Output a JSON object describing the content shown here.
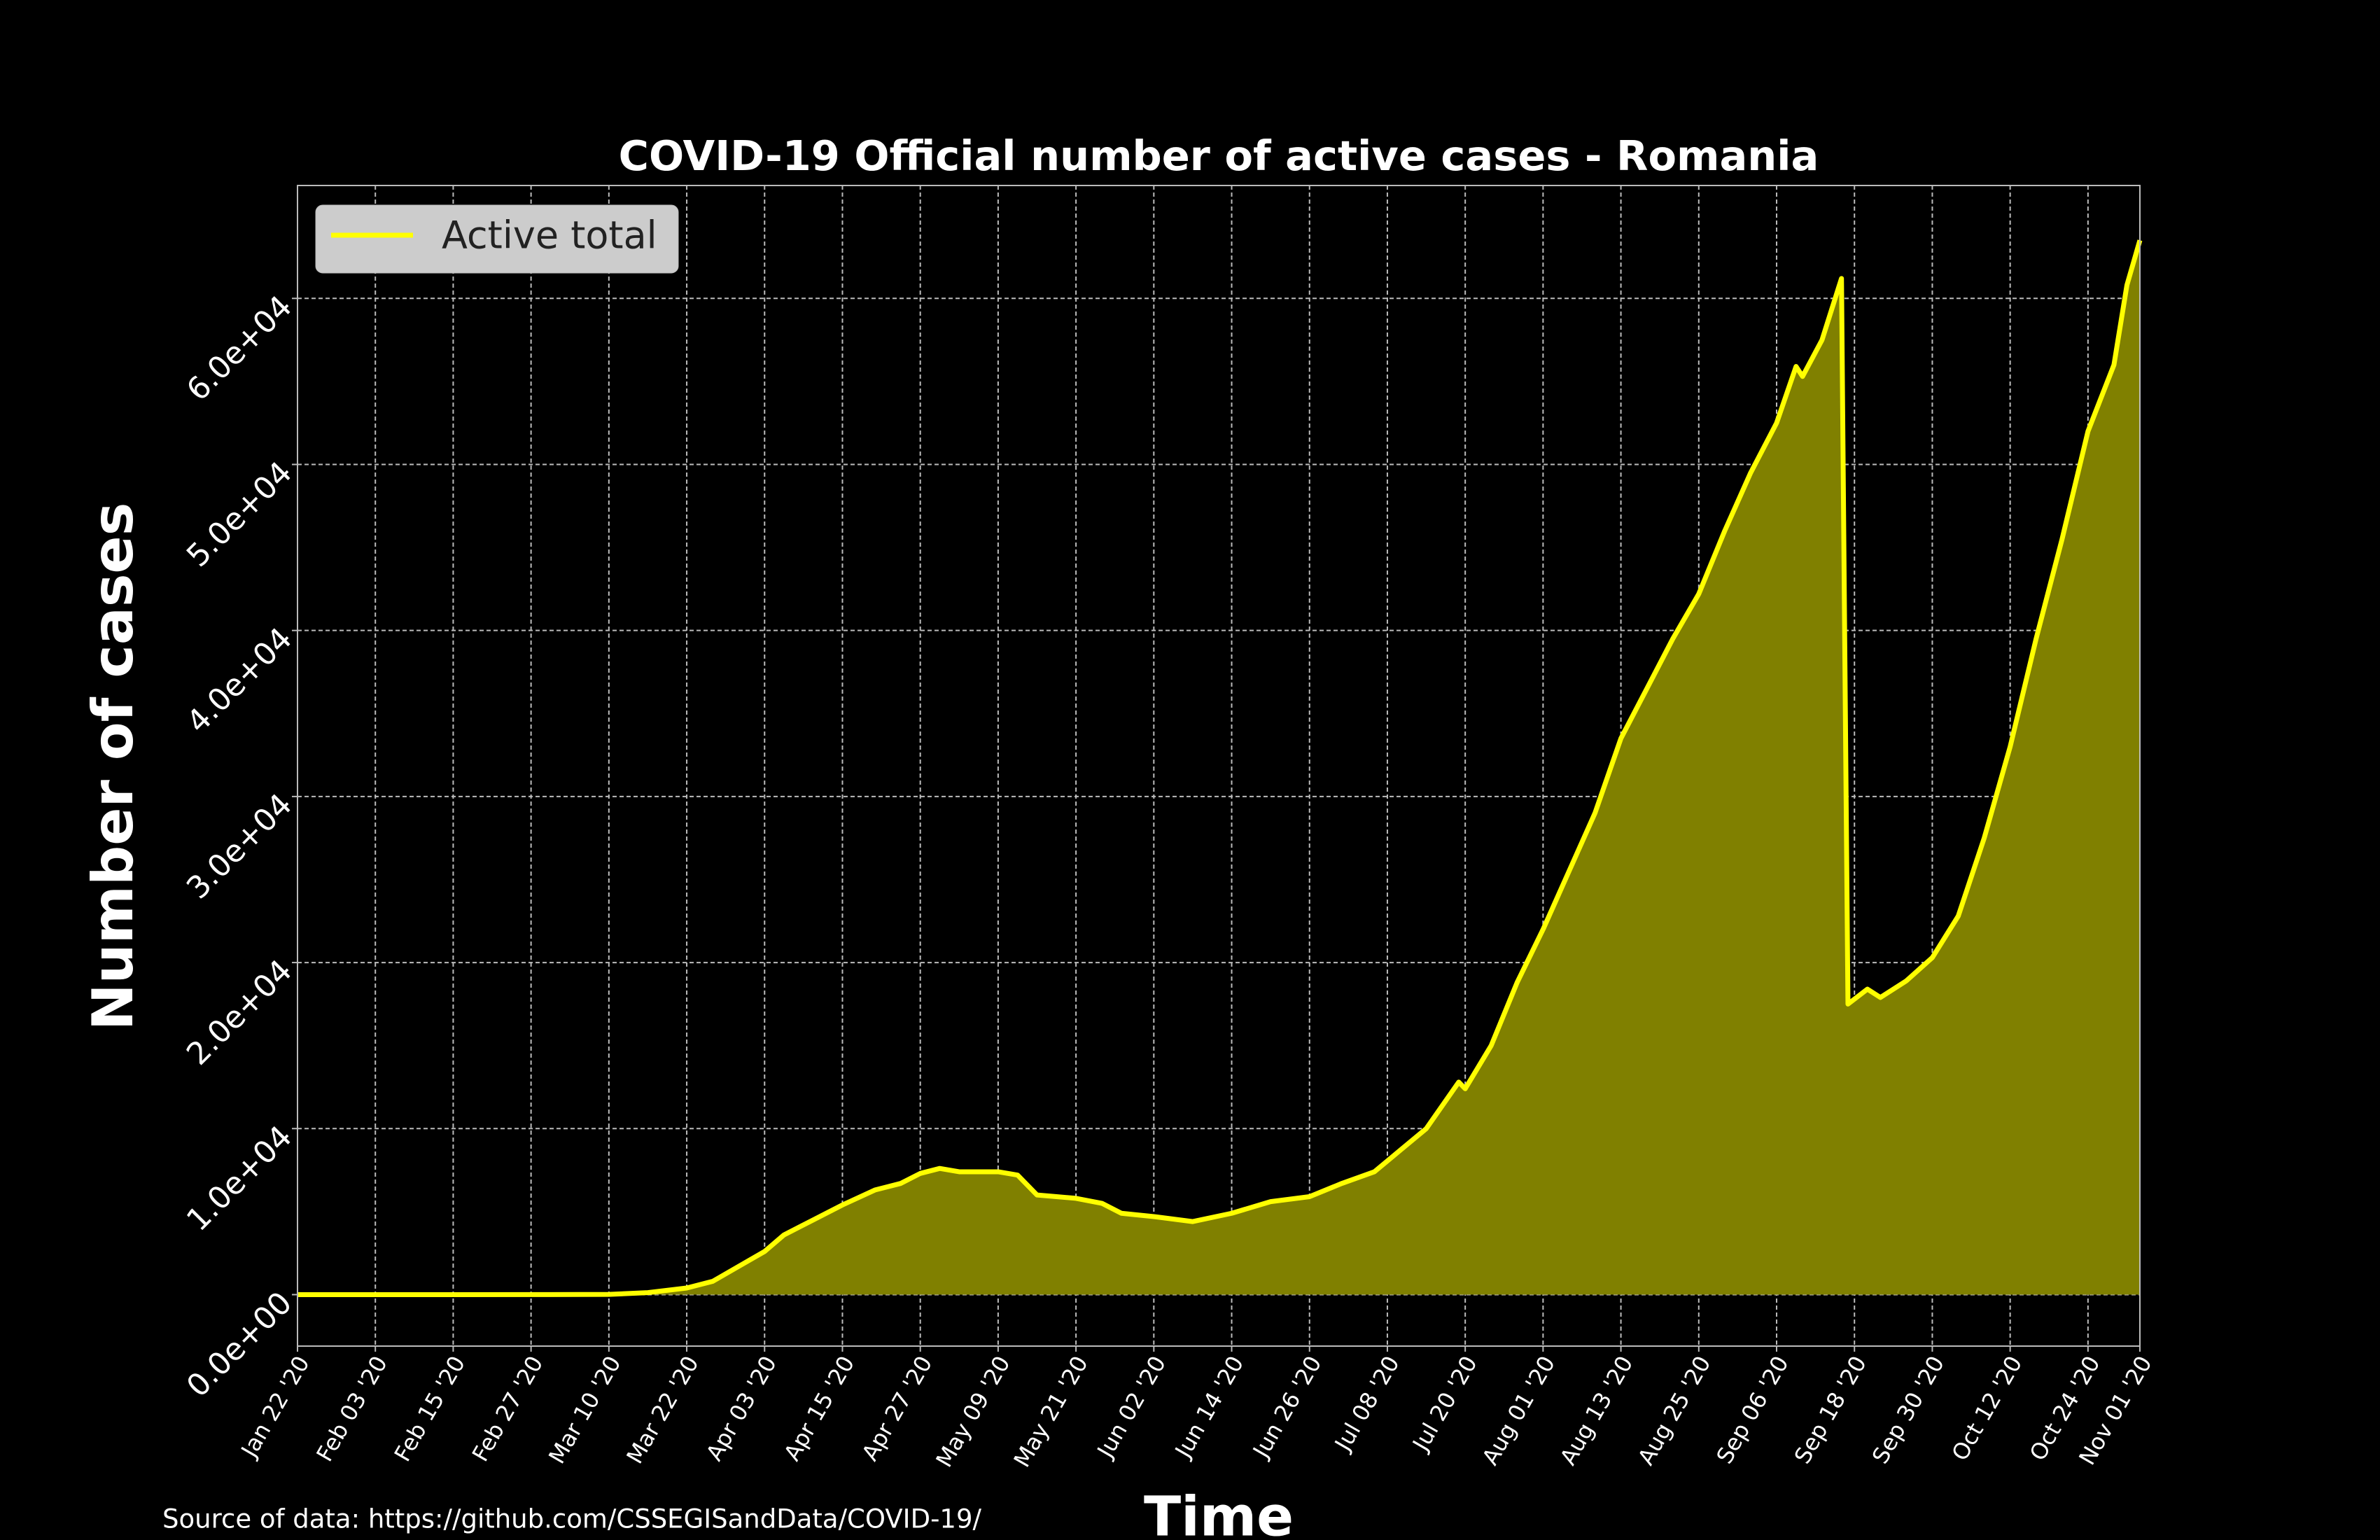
{
  "chart_data": {
    "type": "area",
    "title": "COVID-19 Official number of active cases - Romania",
    "xlabel": "Time",
    "ylabel": "Number of cases",
    "source": "Source of data: https://github.com/CSSEGISandData/COVID-19/",
    "legend": "upper left",
    "grid": true,
    "x": [
      "2020-01-22",
      "2020-02-15",
      "2020-03-01",
      "2020-03-10",
      "2020-03-16",
      "2020-03-22",
      "2020-03-26",
      "2020-03-30",
      "2020-04-03",
      "2020-04-06",
      "2020-04-10",
      "2020-04-15",
      "2020-04-20",
      "2020-04-24",
      "2020-04-27",
      "2020-04-30",
      "2020-05-03",
      "2020-05-09",
      "2020-05-12",
      "2020-05-15",
      "2020-05-18",
      "2020-05-21",
      "2020-05-25",
      "2020-05-28",
      "2020-06-02",
      "2020-06-08",
      "2020-06-14",
      "2020-06-20",
      "2020-06-26",
      "2020-07-01",
      "2020-07-06",
      "2020-07-10",
      "2020-07-14",
      "2020-07-19",
      "2020-07-20",
      "2020-07-24",
      "2020-07-28",
      "2020-08-01",
      "2020-08-05",
      "2020-08-09",
      "2020-08-13",
      "2020-08-17",
      "2020-08-21",
      "2020-08-25",
      "2020-08-29",
      "2020-09-02",
      "2020-09-06",
      "2020-09-09",
      "2020-09-10",
      "2020-09-13",
      "2020-09-16",
      "2020-09-17",
      "2020-09-20",
      "2020-09-22",
      "2020-09-26",
      "2020-09-30",
      "2020-10-04",
      "2020-10-08",
      "2020-10-12",
      "2020-10-16",
      "2020-10-20",
      "2020-10-24",
      "2020-10-28",
      "2020-10-30",
      "2020-11-01"
    ],
    "series": [
      {
        "name": "Active total",
        "color": "#ffff00",
        "fill_color": "#808000",
        "values": [
          0,
          0,
          3,
          15,
          120,
          400,
          800,
          1700,
          2600,
          3600,
          4400,
          5400,
          6300,
          6700,
          7300,
          7600,
          7400,
          7400,
          7200,
          6000,
          5900,
          5800,
          5500,
          4900,
          4700,
          4400,
          4900,
          5600,
          5900,
          6700,
          7400,
          8700,
          10000,
          12800,
          12400,
          15000,
          18800,
          22000,
          25500,
          29000,
          33500,
          36500,
          39500,
          42200,
          46000,
          49500,
          52500,
          55900,
          55300,
          57500,
          61200,
          17500,
          18400,
          17900,
          18900,
          20300,
          22800,
          27500,
          33000,
          39500,
          45500,
          52000,
          56000,
          60800,
          63500
        ]
      }
    ],
    "xlim": [
      "2020-01-22",
      "2020-11-01"
    ],
    "xticks": [
      {
        "value": "2020-01-22",
        "label": "Jan 22 '20"
      },
      {
        "value": "2020-02-03",
        "label": "Feb 03 '20"
      },
      {
        "value": "2020-02-15",
        "label": "Feb 15 '20"
      },
      {
        "value": "2020-02-27",
        "label": "Feb 27 '20"
      },
      {
        "value": "2020-03-10",
        "label": "Mar 10 '20"
      },
      {
        "value": "2020-03-22",
        "label": "Mar 22 '20"
      },
      {
        "value": "2020-04-03",
        "label": "Apr 03 '20"
      },
      {
        "value": "2020-04-15",
        "label": "Apr 15 '20"
      },
      {
        "value": "2020-04-27",
        "label": "Apr 27 '20"
      },
      {
        "value": "2020-05-09",
        "label": "May 09 '20"
      },
      {
        "value": "2020-05-21",
        "label": "May 21 '20"
      },
      {
        "value": "2020-06-02",
        "label": "Jun 02 '20"
      },
      {
        "value": "2020-06-14",
        "label": "Jun 14 '20"
      },
      {
        "value": "2020-06-26",
        "label": "Jun 26 '20"
      },
      {
        "value": "2020-07-08",
        "label": "Jul 08 '20"
      },
      {
        "value": "2020-07-20",
        "label": "Jul 20 '20"
      },
      {
        "value": "2020-08-01",
        "label": "Aug 01 '20"
      },
      {
        "value": "2020-08-13",
        "label": "Aug 13 '20"
      },
      {
        "value": "2020-08-25",
        "label": "Aug 25 '20"
      },
      {
        "value": "2020-09-06",
        "label": "Sep 06 '20"
      },
      {
        "value": "2020-09-18",
        "label": "Sep 18 '20"
      },
      {
        "value": "2020-09-30",
        "label": "Sep 30 '20"
      },
      {
        "value": "2020-10-12",
        "label": "Oct 12 '20"
      },
      {
        "value": "2020-10-24",
        "label": "Oct 24 '20"
      },
      {
        "value": "2020-11-01",
        "label": "Nov 01 '20"
      }
    ],
    "ylim": [
      -3100,
      66800
    ],
    "yticks": [
      {
        "value": 0,
        "label": "0.0e+00"
      },
      {
        "value": 10000,
        "label": "1.0e+04"
      },
      {
        "value": 20000,
        "label": "2.0e+04"
      },
      {
        "value": 30000,
        "label": "3.0e+04"
      },
      {
        "value": 40000,
        "label": "4.0e+04"
      },
      {
        "value": 50000,
        "label": "5.0e+04"
      },
      {
        "value": 60000,
        "label": "6.0e+04"
      }
    ]
  }
}
